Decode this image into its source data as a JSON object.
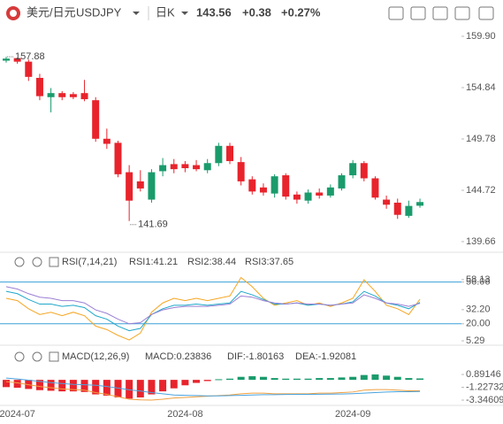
{
  "header": {
    "pair": "美元/日元",
    "symbol": "USDJPY",
    "period": "日K",
    "price": 143.56,
    "change": "+0.38",
    "change_pct": "+0.27%"
  },
  "chart_data": [
    {
      "type": "candlestick",
      "up_color": "#1a9b6c",
      "down_color": "#e8232c",
      "categories": [
        null,
        "2024-07",
        null,
        null,
        null,
        null,
        null,
        null,
        null,
        null,
        null,
        null,
        null,
        null,
        null,
        null,
        "2024-08",
        null,
        null,
        null,
        null,
        null,
        null,
        null,
        null,
        null,
        null,
        null,
        null,
        null,
        null,
        "2024-09",
        null,
        null,
        null,
        null,
        null,
        null
      ],
      "open": [
        157.5,
        157.75,
        157.4,
        155.8,
        153.9,
        154.3,
        154.2,
        154.3,
        153.6,
        149.8,
        149.4,
        146.5,
        145.6,
        143.8,
        146.6,
        147.3,
        147.3,
        147.2,
        146.7,
        147.4,
        149.1,
        147.5,
        145.8,
        145.0,
        144.4,
        146.2,
        144.3,
        143.7,
        144.5,
        144.2,
        144.9,
        146.2,
        147.4,
        145.9,
        143.8,
        143.5,
        142.2,
        143.2
      ],
      "high": [
        157.88,
        157.8,
        157.6,
        156.2,
        154.8,
        154.5,
        154.4,
        155.6,
        153.9,
        150.8,
        149.6,
        147.2,
        146.7,
        146.8,
        147.9,
        147.8,
        147.6,
        147.7,
        147.8,
        149.4,
        149.4,
        148.0,
        146.1,
        145.4,
        146.3,
        146.4,
        144.6,
        144.8,
        144.9,
        145.3,
        146.4,
        147.7,
        147.6,
        146.1,
        144.2,
        143.9,
        143.7,
        143.9
      ],
      "low": [
        157.3,
        157.2,
        155.5,
        153.6,
        152.4,
        153.6,
        153.7,
        153.5,
        149.5,
        148.8,
        146.0,
        141.69,
        144.6,
        143.5,
        146.1,
        146.4,
        146.5,
        146.6,
        146.4,
        147.1,
        147.3,
        145.2,
        144.3,
        144.2,
        144.0,
        143.8,
        143.4,
        143.4,
        143.9,
        144.0,
        144.7,
        145.9,
        145.6,
        143.8,
        142.9,
        141.9,
        142.0,
        143.0
      ],
      "close": [
        157.7,
        157.4,
        155.9,
        154.0,
        154.3,
        153.9,
        153.9,
        153.7,
        149.8,
        149.3,
        146.3,
        143.7,
        144.9,
        146.5,
        147.2,
        146.8,
        146.9,
        146.8,
        147.4,
        149.1,
        147.6,
        145.6,
        144.6,
        144.5,
        146.1,
        144.1,
        143.8,
        144.5,
        144.2,
        145.0,
        146.2,
        147.4,
        145.9,
        144.0,
        143.3,
        142.3,
        143.18,
        143.56
      ],
      "annotations": [
        157.88,
        141.69
      ],
      "ylim": [
        138.61,
        160.86
      ],
      "yticks": [
        {
          "value": 159.9,
          "label": "159.90"
        },
        154.84,
        149.78,
        144.72,
        139.66
      ]
    },
    {
      "type": "line",
      "title": "RSI(7,14,21)",
      "series": [
        {
          "name": "RSI1",
          "color": "#f5a623",
          "values": [
            42,
            40,
            33,
            28,
            30,
            27,
            30,
            27,
            18,
            15,
            10,
            6,
            12,
            30,
            38,
            42,
            40,
            42,
            40,
            42,
            44,
            60,
            52,
            42,
            36,
            38,
            40,
            36,
            38,
            35,
            38,
            42,
            58,
            48,
            36,
            33,
            28,
            41.21
          ]
        },
        {
          "name": "RSI2",
          "color": "#1fa8c9",
          "values": [
            48,
            46,
            41,
            37,
            37,
            35,
            36,
            34,
            27,
            24,
            18,
            14,
            16,
            28,
            33,
            36,
            36,
            37,
            36,
            37,
            38,
            48,
            45,
            41,
            37,
            37,
            38,
            36,
            37,
            36,
            37,
            39,
            48,
            44,
            38,
            36,
            33,
            38.44
          ]
        },
        {
          "name": "RSI3",
          "color": "#9b7fd4",
          "values": [
            52,
            50,
            46,
            43,
            42,
            40,
            40,
            38,
            32,
            29,
            24,
            20,
            21,
            28,
            32,
            34,
            35,
            35,
            35,
            36,
            37,
            44,
            43,
            40,
            38,
            37,
            38,
            37,
            37,
            36,
            37,
            38,
            45,
            42,
            38,
            37,
            35,
            37.65
          ]
        }
      ],
      "hlines": [
        56.06,
        20.0
      ],
      "hline_color": "#3aa0d8",
      "ylim": [
        1.5,
        76.4
      ],
      "yticks": [
        58.13,
        56.06,
        {
          "value": 32.2,
          "label": "32.20"
        },
        {
          "value": 20.0,
          "label": "20.00"
        },
        5.29
      ]
    },
    {
      "type": "macd",
      "title": "MACD(12,26,9)",
      "up_color": "#1a9b6c",
      "down_color": "#e8232c",
      "series": [
        {
          "name": "MACD",
          "color": "#a87fd6",
          "values": [
            -1.2,
            -1.3,
            -1.5,
            -1.7,
            -1.8,
            -1.9,
            -1.9,
            -2.0,
            -2.4,
            -2.6,
            -2.9,
            -3.1,
            -2.9,
            -2.4,
            -1.9,
            -1.4,
            -0.9,
            -0.5,
            -0.2,
            0.1,
            0.2,
            0.5,
            0.6,
            0.5,
            0.3,
            0.2,
            0.2,
            0.2,
            0.3,
            0.3,
            0.4,
            0.5,
            0.8,
            0.89146,
            0.7,
            0.5,
            0.3,
            0.23836
          ]
        },
        {
          "name": "DIF",
          "color": "#f0a040",
          "values": [
            -0.3,
            -0.5,
            -0.8,
            -1.1,
            -1.3,
            -1.5,
            -1.6,
            -1.7,
            -2.1,
            -2.4,
            -2.8,
            -3.2,
            -3.3,
            -3.34609,
            -3.2,
            -3.0,
            -2.9,
            -2.8,
            -2.7,
            -2.6,
            -2.5,
            -2.3,
            -2.2,
            -2.2,
            -2.3,
            -2.3,
            -2.3,
            -2.3,
            -2.2,
            -2.2,
            -2.1,
            -2.0,
            -1.7,
            -1.6,
            -1.6,
            -1.7,
            -1.8,
            -1.80163
          ]
        },
        {
          "name": "DEA",
          "color": "#4aa3df",
          "values": [
            0.3,
            0.15,
            -0.05,
            -0.25,
            -0.45,
            -0.6,
            -0.75,
            -0.8,
            -0.9,
            -1.1,
            -1.35,
            -1.65,
            -1.85,
            -2.1,
            -2.3,
            -2.5,
            -2.55,
            -2.6,
            -2.65,
            -2.65,
            -2.6,
            -2.55,
            -2.5,
            -2.45,
            -2.45,
            -2.42,
            -2.4,
            -2.4,
            -2.38,
            -2.36,
            -2.33,
            -2.28,
            -2.2,
            -2.1,
            -2.0,
            -1.95,
            -1.95,
            -1.92081
          ]
        }
      ],
      "ylim": [
        -4.22,
        4.99
      ],
      "yticks": [
        0.89146,
        -1.22732,
        -3.34609
      ]
    }
  ]
}
